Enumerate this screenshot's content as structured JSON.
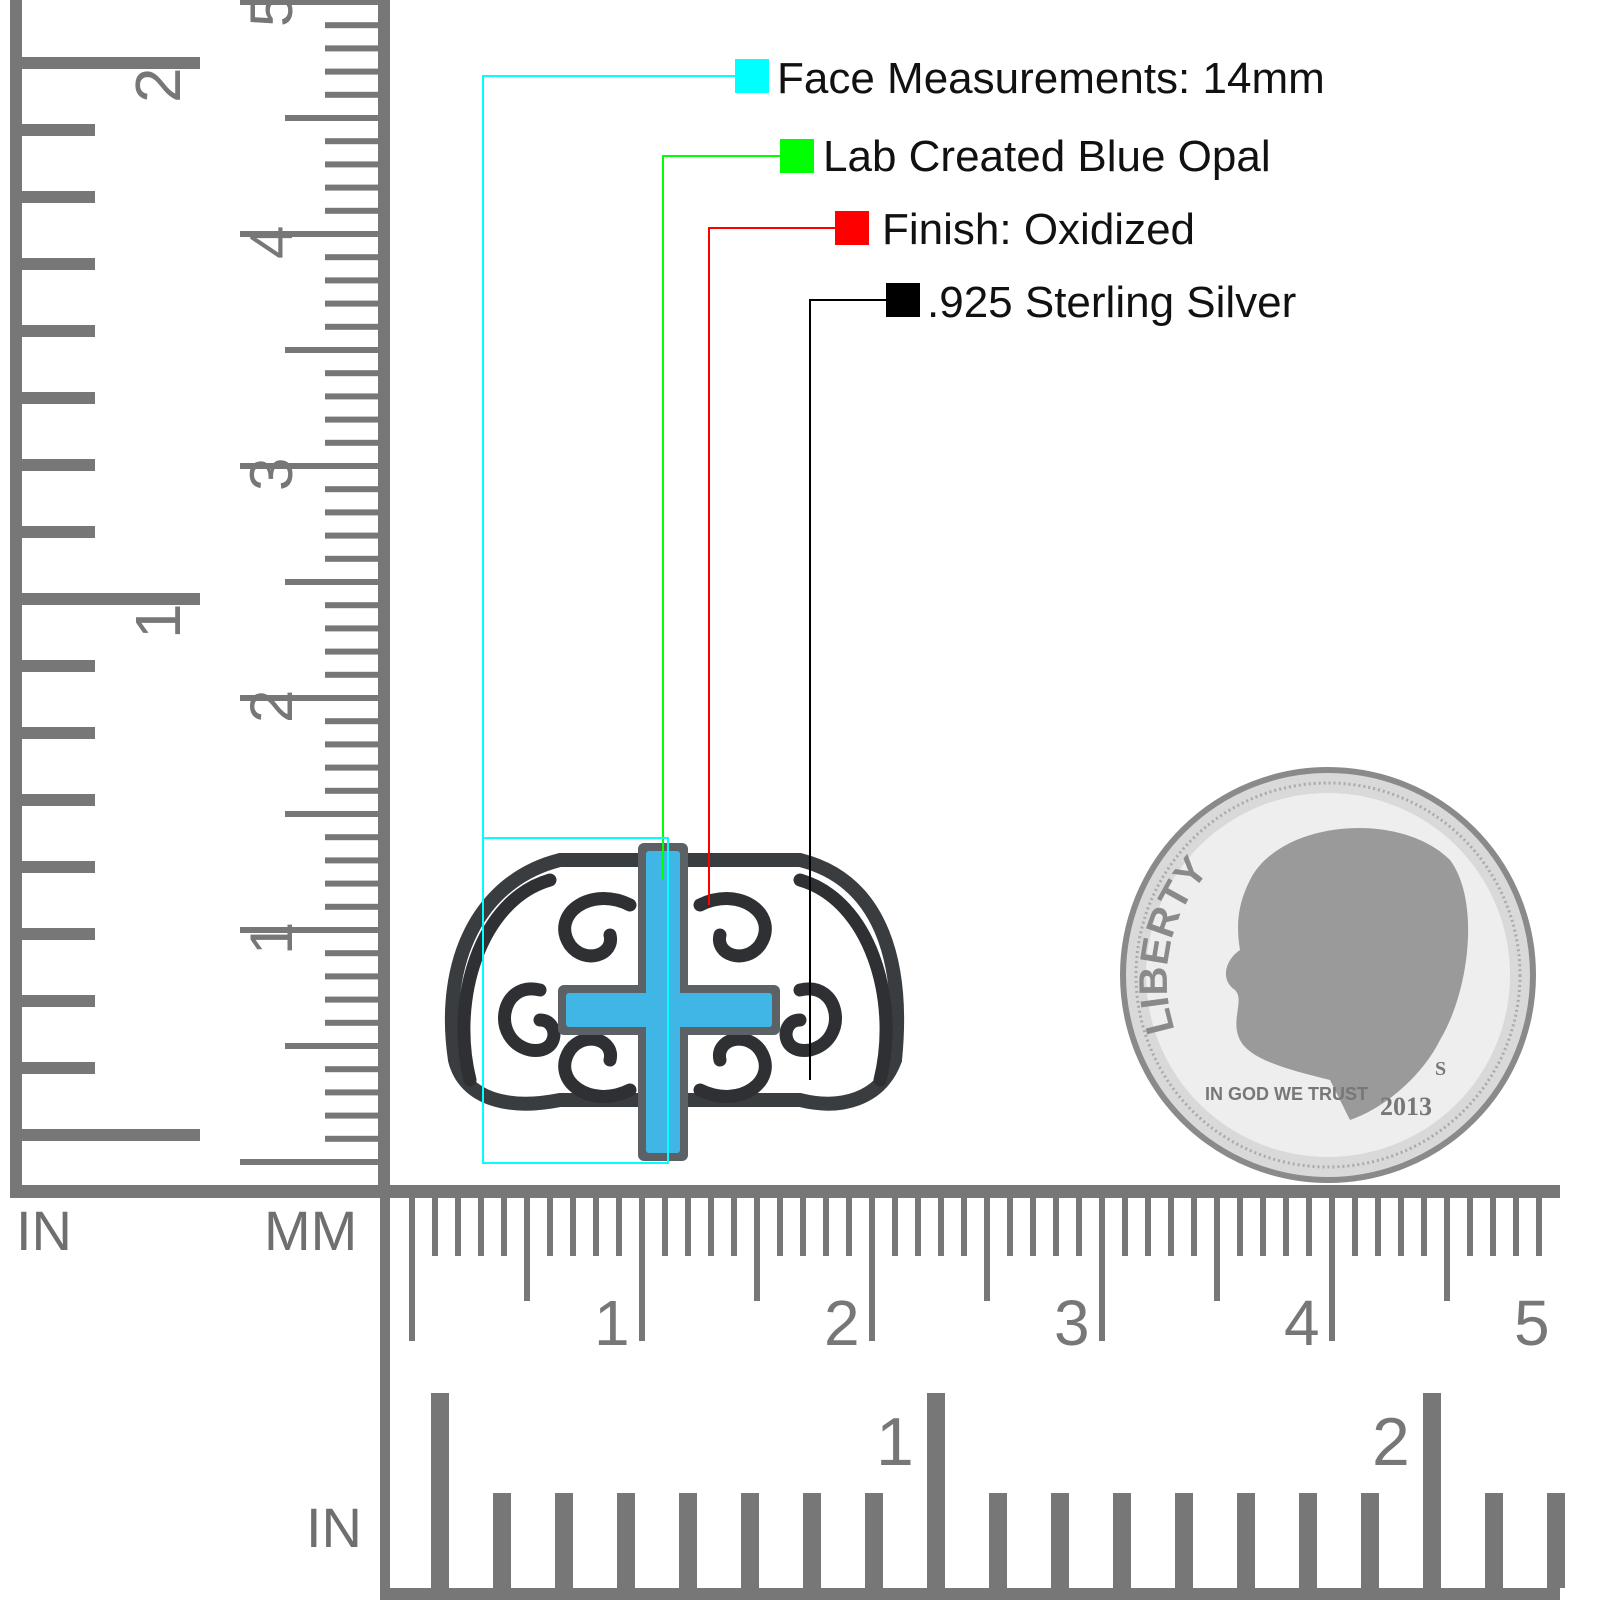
{
  "legend": [
    {
      "label": "Face Measurements: 14mm",
      "color": "#00ffff"
    },
    {
      "label": "Lab Created Blue Opal",
      "color": "#00ff00"
    },
    {
      "label": "Finish: Oxidized",
      "color": "#ff0000"
    },
    {
      "label": ".925 Sterling Silver",
      "color": "#000000"
    }
  ],
  "rulers": {
    "vertical_in_label": "IN",
    "vertical_mm_label": "MM",
    "horizontal_in_label": "IN",
    "vertical_mm_numbers": [
      "1",
      "2",
      "3",
      "4",
      "5"
    ],
    "vertical_in_numbers": [
      "1",
      "2"
    ],
    "horizontal_mm_numbers": [
      "1",
      "2",
      "3",
      "4",
      "5"
    ],
    "horizontal_in_numbers": [
      "1",
      "2"
    ],
    "color": "#777777"
  },
  "product": {
    "metal_color": "#3a3d40",
    "stone_color": "#3fb6e6"
  },
  "coin": {
    "legend_top": "LIBERTY",
    "motto": "IN GOD WE TRUST",
    "year": "2013",
    "mint_mark": "S"
  }
}
